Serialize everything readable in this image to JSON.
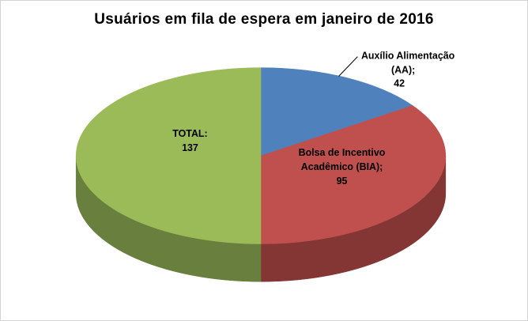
{
  "page": {
    "background_color": "#FFFFFF",
    "frame_border_color": "#D3D3D3"
  },
  "chart_data": {
    "type": "pie",
    "effect": "3d",
    "title": "Usuários em fila de espera em janeiro de 2016",
    "legend": "none",
    "start_angle_deg": 0,
    "direction": "clockwise",
    "slices": [
      {
        "name": "Auxílio Alimentação (AA)",
        "value": 42,
        "color": "#4F81BD",
        "label_placement": "outside",
        "label_lines": [
          "Auxílio Alimentação",
          "(AA);",
          "42"
        ]
      },
      {
        "name": "Bolsa de Incentivo Acadêmico (BIA)",
        "value": 95,
        "color": "#C0504D",
        "label_placement": "inside",
        "label_lines": [
          "Bolsa de Incentivo",
          "Acadêmico (BIA);",
          "95"
        ]
      },
      {
        "name": "TOTAL",
        "value": 137,
        "color": "#9BBB59",
        "label_placement": "inside",
        "label_lines": [
          "TOTAL:",
          "137"
        ]
      }
    ]
  }
}
